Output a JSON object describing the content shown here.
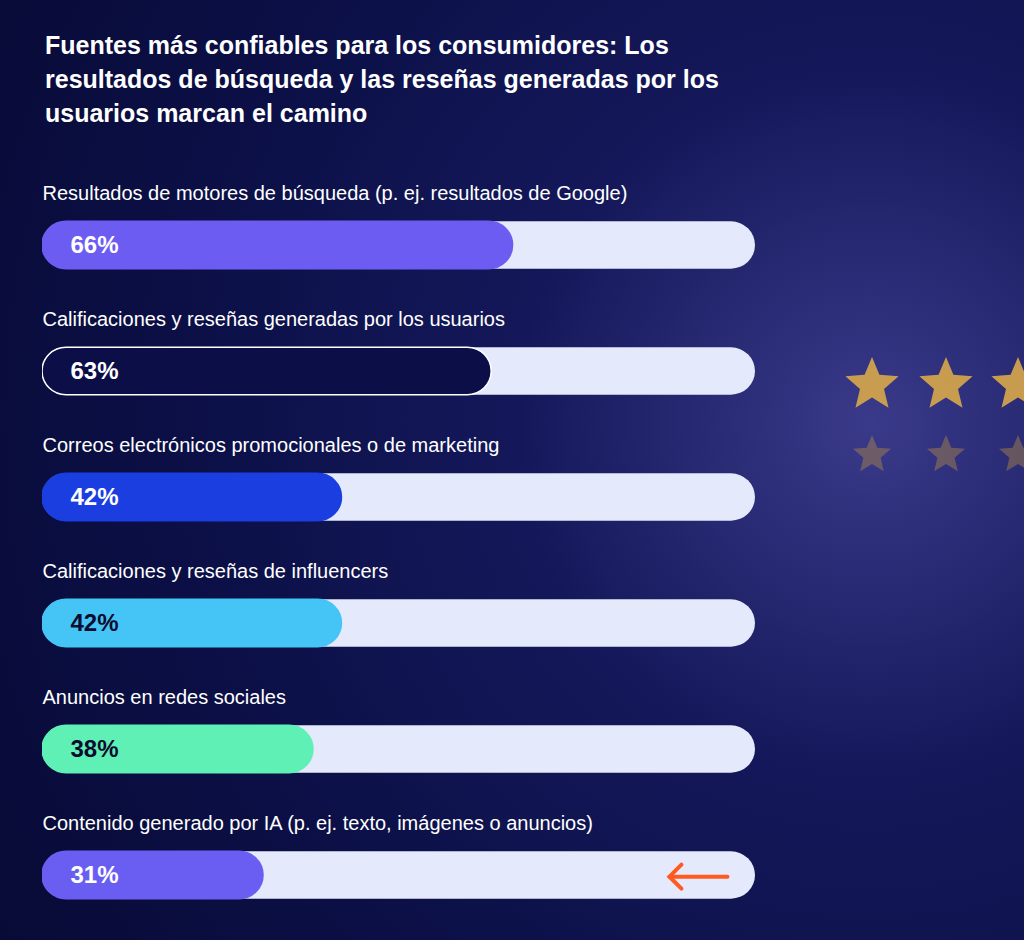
{
  "chart_data": {
    "type": "bar",
    "orientation": "horizontal",
    "title": "Fuentes más confiables para los consumidores: Los resultados de búsqueda y las reseñas generadas por los usuarios marcan el camino",
    "categories": [
      "Resultados de motores de búsqueda (p. ej. resultados de Google)",
      "Calificaciones y reseñas generadas por los usuarios",
      "Correos electrónicos promocionales o de marketing",
      "Calificaciones y reseñas de influencers",
      "Anuncios en redes sociales",
      "Contenido generado por IA (p. ej. texto, imágenes o anuncios)"
    ],
    "values": [
      66,
      63,
      42,
      42,
      38,
      31
    ],
    "value_labels": [
      "66%",
      "63%",
      "42%",
      "42%",
      "38%",
      "31%"
    ],
    "colors": [
      "#6c5cf2",
      "#0c0e48",
      "#1a3ee0",
      "#45c4f6",
      "#5ff0b6",
      "#6a5ef2"
    ],
    "xlim": [
      0,
      100
    ],
    "data_labels": true,
    "tick_labels": false
  }
}
